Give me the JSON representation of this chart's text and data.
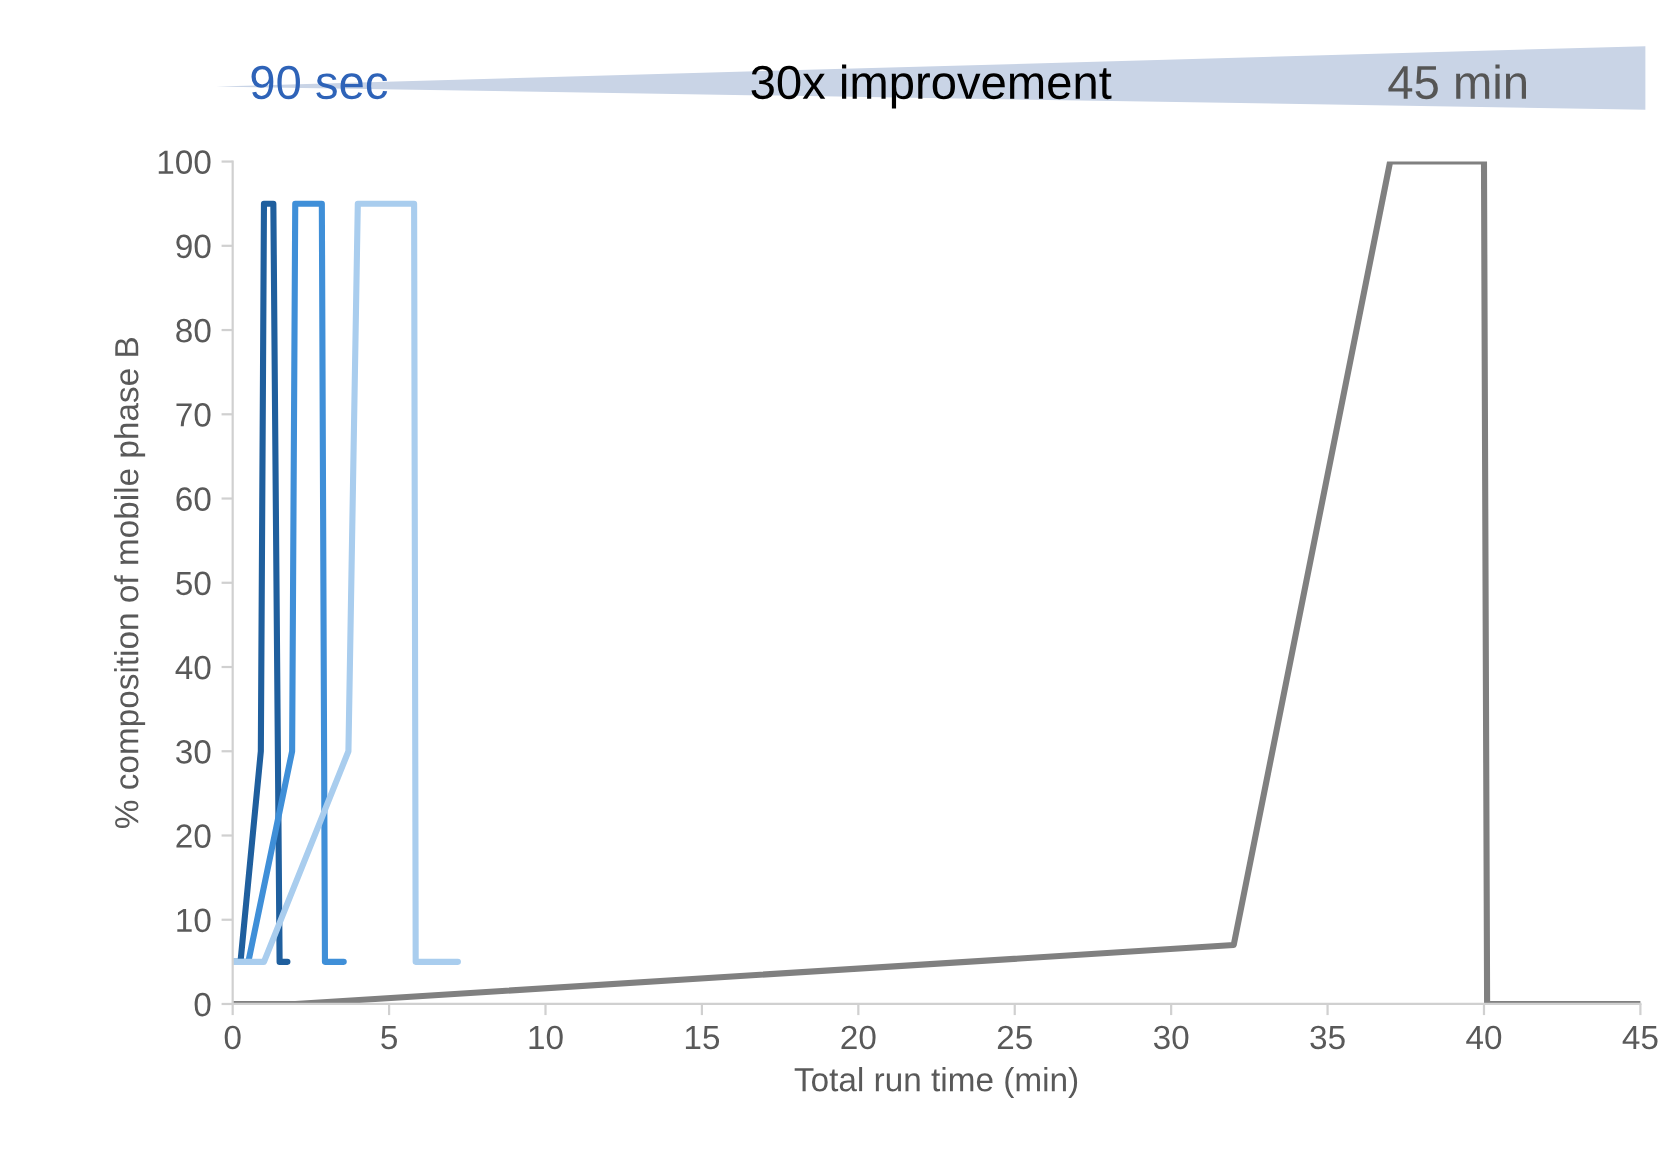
{
  "chart_data": {
    "type": "line",
    "xlabel": "Total run time (min)",
    "ylabel": "% composition of mobile phase B",
    "annotations": [
      "90 sec",
      "30x improvement",
      "45 min"
    ],
    "series": [
      {
        "color": "#1f5f9e",
        "x": [
          0,
          0.25,
          0.9,
          1.0,
          1.3,
          1.5,
          1.75
        ],
        "values": [
          5,
          5,
          30,
          95,
          95,
          5,
          5
        ]
      },
      {
        "color": "#3f8fd8",
        "x": [
          0,
          0.5,
          1.9,
          2.0,
          2.85,
          2.95,
          3.55
        ],
        "values": [
          5,
          5,
          30,
          95,
          95,
          5,
          5
        ]
      },
      {
        "color": "#a9cdee",
        "x": [
          0,
          1.0,
          3.7,
          4.0,
          5.8,
          5.85,
          7.2
        ],
        "values": [
          5,
          5,
          30,
          95,
          95,
          5,
          5
        ]
      },
      {
        "color": "#808080",
        "x": [
          0,
          2,
          32,
          37,
          40,
          40.1,
          45
        ],
        "values": [
          0,
          0,
          7,
          100,
          100,
          0,
          0
        ]
      }
    ],
    "xlim": [
      0,
      45
    ],
    "xticks": [
      0,
      5,
      10,
      15,
      20,
      25,
      30,
      35,
      40,
      45
    ],
    "ylim": [
      0,
      100
    ],
    "yticks": [
      0,
      10,
      20,
      30,
      40,
      50,
      60,
      70,
      80,
      90,
      100
    ],
    "grid": false,
    "marker": "none",
    "line_style": "solid"
  }
}
